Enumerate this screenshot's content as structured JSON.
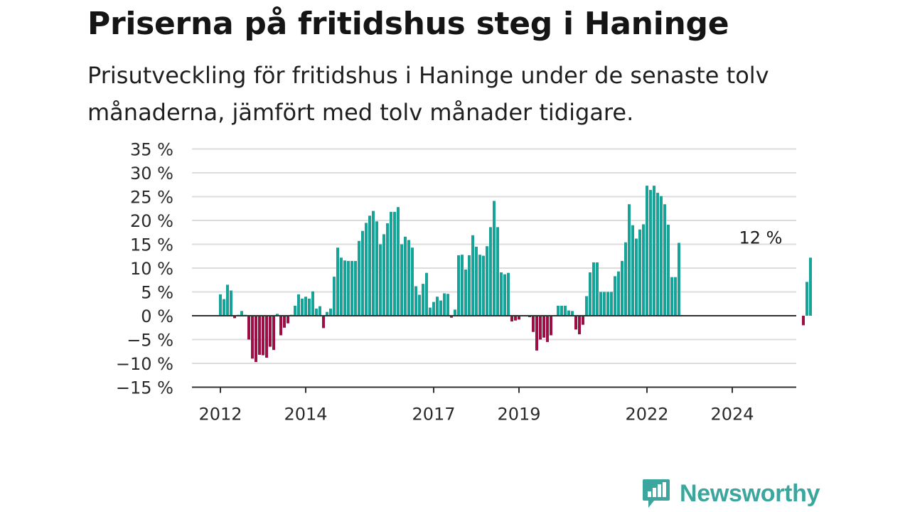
{
  "title": "Priserna på fritidshus steg i Haninge",
  "subtitle": "Prisutveckling för fritidshus i Haninge under de senaste tolv månaderna, jämfört med tolv månader tidigare.",
  "brand": {
    "name": "Newsworthy",
    "icon": "newsworthy-logo-icon",
    "color": "#3aa69d"
  },
  "colors": {
    "positive": "#17a398",
    "negative": "#9c0f44"
  },
  "chart_data": {
    "type": "bar",
    "title": "Priserna på fritidshus steg i Haninge",
    "xlabel": "",
    "ylabel": "",
    "ylim": [
      -15,
      35
    ],
    "y_ticks": [
      35,
      30,
      25,
      20,
      15,
      10,
      5,
      0,
      -5,
      -10,
      -15
    ],
    "y_tick_labels": [
      "35 %",
      "30 %",
      "25 %",
      "20 %",
      "15 %",
      "10 %",
      "5 %",
      "0 %",
      "−5 %",
      "−10 %",
      "−15 %"
    ],
    "x_ticks": [
      "2012",
      "2014",
      "2017",
      "2019",
      "2022",
      "2024"
    ],
    "x_tick_dates": [
      "2012-01",
      "2014-01",
      "2017-01",
      "2019-01",
      "2022-01",
      "2024-01"
    ],
    "grid": true,
    "annotation": {
      "label": "12 %",
      "x": "2024-09"
    },
    "series": [
      {
        "start": "2012-01",
        "values": [
          4.5,
          3.5,
          6.5,
          5.3,
          -0.5,
          0.2,
          1.0,
          0.2,
          -5.0,
          -9.0,
          -9.7,
          -8.2,
          -8.3,
          -8.8,
          -6.5,
          -7.2,
          0.4,
          -4.1,
          -2.5,
          -1.6,
          0.2,
          2.1,
          4.5,
          3.6,
          4.0,
          3.6,
          5.1,
          1.5,
          2.0,
          -2.6,
          0.8,
          1.5,
          8.2,
          14.3,
          12.2,
          11.6,
          11.5,
          11.5,
          11.5,
          15.7,
          17.8,
          19.5,
          21.0,
          22.0,
          19.8,
          15.0,
          17.1,
          19.4,
          21.8,
          21.8,
          22.8,
          15.0,
          16.6,
          15.9,
          14.3,
          6.2,
          4.4,
          6.7,
          9.0,
          1.7,
          2.9,
          4.0,
          3.2,
          4.7,
          4.6,
          -0.4,
          1.3,
          12.7,
          12.8,
          9.7,
          12.7,
          16.9,
          14.5,
          12.8,
          12.6,
          14.6,
          18.6,
          24.1,
          18.6,
          9.1,
          8.7,
          9.0,
          -1.2,
          -1.0,
          -0.8,
          0.0,
          0.0,
          -0.3,
          -3.4,
          -7.3,
          -5.0,
          -4.6,
          -5.5,
          -4.1,
          0.0,
          2.1,
          2.1,
          2.1,
          1.1,
          1.0,
          -2.9,
          -3.9,
          -1.9,
          4.1,
          9.1,
          11.2,
          11.2,
          5.0,
          5.0,
          5.0,
          5.0,
          8.3,
          9.3,
          11.5,
          15.4,
          23.4,
          19.0,
          16.2,
          18.1,
          19.2,
          27.3,
          26.4,
          27.3,
          25.8,
          25.1,
          23.4,
          19.1,
          8.1,
          8.1,
          15.3,
          0,
          0,
          0,
          0,
          0,
          0,
          0,
          0,
          0,
          0,
          0,
          0,
          0,
          0,
          0,
          0,
          0,
          0,
          0,
          0,
          0,
          0,
          0,
          0,
          0,
          0,
          0,
          0,
          0,
          0,
          0,
          0,
          0,
          0,
          -2.0,
          7.1,
          12.2
        ]
      }
    ]
  }
}
